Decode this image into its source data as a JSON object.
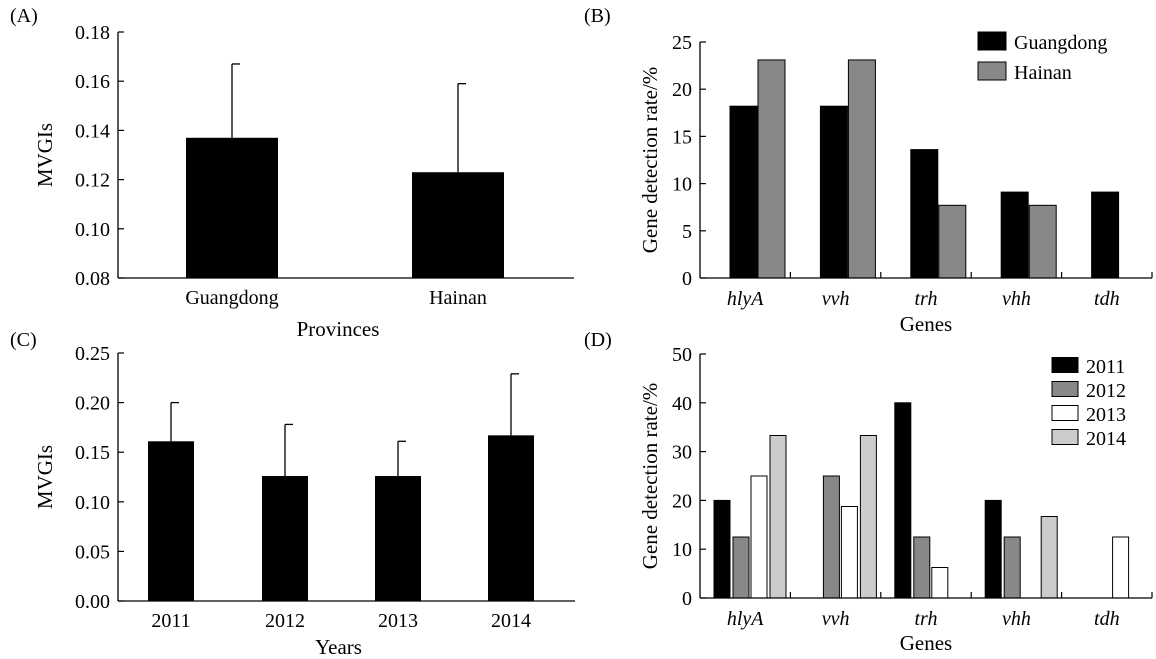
{
  "chart_data": [
    {
      "id": "A",
      "panel_label": "(A)",
      "type": "bar",
      "categories": [
        "Guangdong",
        "Hainan"
      ],
      "values": [
        0.137,
        0.123
      ],
      "errors": [
        0.03,
        0.036
      ],
      "xlabel": "Provinces",
      "ylabel": "MVGIs",
      "ylim": [
        0.08,
        0.18
      ],
      "yticks": [
        "0.08",
        "0.10",
        "0.12",
        "0.14",
        "0.16",
        "0.18"
      ],
      "colors": [
        "#000000"
      ],
      "grid": false
    },
    {
      "id": "B",
      "panel_label": "(B)",
      "type": "bar",
      "categories": [
        "hlyA",
        "vvh",
        "trh",
        "vhh",
        "tdh"
      ],
      "series": [
        {
          "name": "Guangdong",
          "values": [
            18.2,
            18.2,
            13.6,
            9.1,
            9.1
          ],
          "color": "#000000"
        },
        {
          "name": "Hainan",
          "values": [
            23.1,
            23.1,
            7.7,
            7.7,
            0
          ],
          "color": "#888888"
        }
      ],
      "xlabel": "Genes",
      "ylabel": "Gene detection rate/%",
      "ylim": [
        0,
        25
      ],
      "yticks": [
        "0",
        "5",
        "10",
        "15",
        "20",
        "25"
      ],
      "legend_position": "top-right",
      "grid": false
    },
    {
      "id": "C",
      "panel_label": "(C)",
      "type": "bar",
      "categories": [
        "2011",
        "2012",
        "2013",
        "2014"
      ],
      "values": [
        0.161,
        0.126,
        0.126,
        0.167
      ],
      "errors": [
        0.039,
        0.052,
        0.035,
        0.062
      ],
      "xlabel": "Years",
      "ylabel": "MVGIs",
      "ylim": [
        0,
        0.25
      ],
      "yticks": [
        "0.00",
        "0.05",
        "0.10",
        "0.15",
        "0.20",
        "0.25"
      ],
      "colors": [
        "#000000"
      ],
      "grid": false
    },
    {
      "id": "D",
      "panel_label": "(D)",
      "type": "bar",
      "categories": [
        "hlyA",
        "vvh",
        "trh",
        "vhh",
        "tdh"
      ],
      "series": [
        {
          "name": "2011",
          "values": [
            20,
            0,
            40,
            20,
            0
          ],
          "color": "#000000"
        },
        {
          "name": "2012",
          "values": [
            12.5,
            25,
            12.5,
            12.5,
            0
          ],
          "color": "#888888"
        },
        {
          "name": "2013",
          "values": [
            25,
            18.75,
            6.25,
            0,
            12.5
          ],
          "color": "#ffffff"
        },
        {
          "name": "2014",
          "values": [
            33.3,
            33.3,
            0,
            16.7,
            0
          ],
          "color": "#cccccc"
        }
      ],
      "xlabel": "Genes",
      "ylabel": "Gene detection rate/%",
      "ylim": [
        0,
        50
      ],
      "yticks": [
        "0",
        "10",
        "20",
        "30",
        "40",
        "50"
      ],
      "legend_position": "top-right",
      "grid": false
    }
  ]
}
